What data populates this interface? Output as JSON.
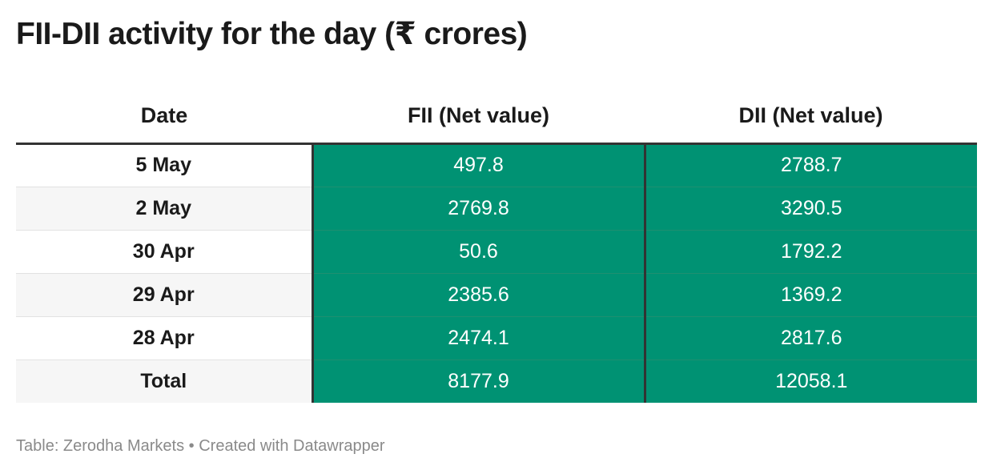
{
  "colors": {
    "value_fill": "#009273",
    "header_rule": "#333333",
    "footer_text": "#8a8a8a"
  },
  "chart_data": {
    "type": "table",
    "title": "FII-DII activity for the day (₹ crores)",
    "columns": [
      "Date",
      "FII (Net value)",
      "DII (Net value)"
    ],
    "rows": [
      {
        "date": "5 May",
        "fii": "497.8",
        "dii": "2788.7"
      },
      {
        "date": "2 May",
        "fii": "2769.8",
        "dii": "3290.5"
      },
      {
        "date": "30 Apr",
        "fii": "50.6",
        "dii": "1792.2"
      },
      {
        "date": "29 Apr",
        "fii": "2385.6",
        "dii": "1369.2"
      },
      {
        "date": "28 Apr",
        "fii": "2474.1",
        "dii": "2817.6"
      },
      {
        "date": "Total",
        "fii": "8177.9",
        "dii": "12058.1"
      }
    ],
    "footer": "Table: Zerodha Markets • Created with Datawrapper"
  }
}
